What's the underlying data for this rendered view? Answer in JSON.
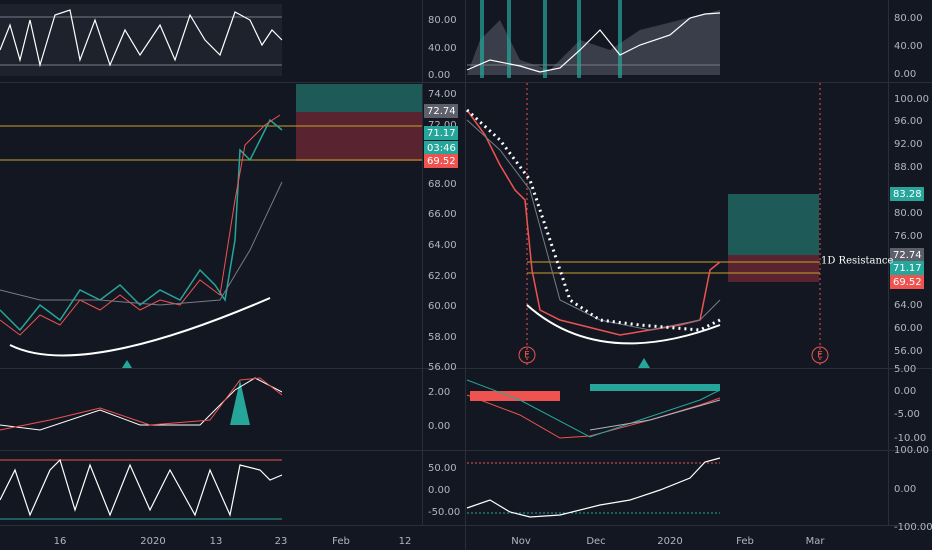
{
  "left": {
    "osc_axis": [
      "80.00",
      "40.00",
      "0.00"
    ],
    "price_axis": [
      "74.00",
      "72.00",
      "68.00",
      "66.00",
      "64.00",
      "62.00",
      "60.00",
      "58.00",
      "56.00"
    ],
    "price_tags": [
      "72.74",
      "71.17",
      "03:46",
      "69.52"
    ],
    "macd_axis": [
      "2.00",
      "0.00"
    ],
    "stoch_axis": [
      "50.00",
      "0.00",
      "-50.00"
    ],
    "x_axis": [
      "16",
      "2020",
      "13",
      "23",
      "Feb",
      "12"
    ]
  },
  "right": {
    "osc_axis": [
      "80.00",
      "40.00",
      "0.00"
    ],
    "price_axis": [
      "100.00",
      "96.00",
      "92.00",
      "88.00",
      "80.00",
      "76.00",
      "64.00",
      "60.00",
      "56.00"
    ],
    "price_tags": [
      "83.28",
      "72.74",
      "71.17",
      "69.52"
    ],
    "annotation": "1D Resistance",
    "event_markers": [
      "E",
      "E"
    ],
    "macd_axis": [
      "5.00",
      "0.00",
      "-5.00",
      "-10.00"
    ],
    "stoch_axis": [
      "100.00",
      "0.00",
      "-100.00"
    ],
    "x_axis": [
      "Nov",
      "Dec",
      "2020",
      "Feb",
      "Mar"
    ]
  }
}
